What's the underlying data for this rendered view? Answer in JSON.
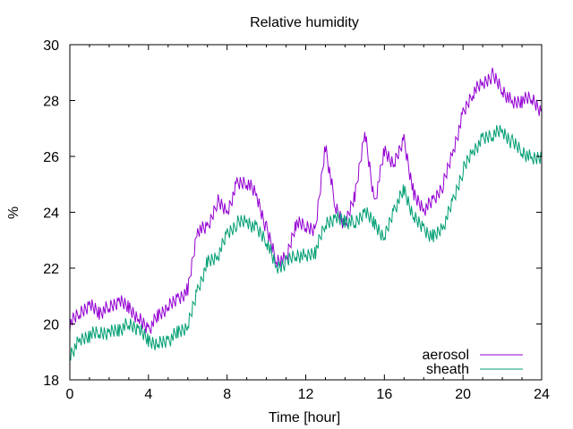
{
  "chart_data": {
    "type": "line",
    "title": "Relative humidity",
    "xlabel": "Time [hour]",
    "ylabel": "%",
    "xlim": [
      0,
      24
    ],
    "ylim": [
      18,
      30
    ],
    "xticks": [
      0,
      4,
      8,
      12,
      16,
      20,
      24
    ],
    "xtick_labels": [
      "0",
      "4",
      "8",
      "12",
      "16",
      "20",
      "24"
    ],
    "yticks": [
      18,
      20,
      22,
      24,
      26,
      28,
      30
    ],
    "ytick_labels": [
      "18",
      "20",
      "22",
      "24",
      "26",
      "28",
      "30"
    ],
    "grid": false,
    "legend": "bottom-right",
    "series": [
      {
        "name": "aerosol",
        "color": "#9400d3",
        "x": [
          0,
          0.5,
          1,
          1.5,
          2,
          2.5,
          3,
          3.5,
          4,
          4.5,
          5,
          5.5,
          6,
          6.5,
          7,
          7.5,
          8,
          8.5,
          9,
          9.5,
          10,
          10.5,
          11,
          11.5,
          12,
          12.5,
          13,
          13.5,
          14,
          14.5,
          15,
          15.5,
          16,
          16.5,
          17,
          17.5,
          18,
          18.5,
          19,
          19.5,
          20,
          20.5,
          21,
          21.5,
          22,
          22.5,
          23,
          23.5,
          24
        ],
        "y": [
          20.0,
          20.4,
          20.7,
          20.4,
          20.6,
          20.8,
          20.6,
          20.2,
          19.8,
          20.3,
          20.6,
          20.9,
          21.2,
          23.4,
          23.4,
          24.4,
          24.0,
          25.0,
          25.1,
          24.6,
          23.4,
          22.3,
          22.3,
          23.6,
          23.5,
          23.4,
          26.4,
          24.2,
          23.5,
          24.6,
          26.9,
          24.3,
          26.2,
          25.7,
          26.6,
          24.6,
          24.1,
          24.4,
          25.0,
          26.2,
          27.5,
          28.3,
          28.6,
          28.9,
          28.4,
          27.9,
          28.0,
          28.1,
          27.6
        ]
      },
      {
        "name": "sheath",
        "color": "#009e73",
        "x": [
          0,
          0.5,
          1,
          1.5,
          2,
          2.5,
          3,
          3.5,
          4,
          4.5,
          5,
          5.5,
          6,
          6.5,
          7,
          7.5,
          8,
          8.5,
          9,
          9.5,
          10,
          10.5,
          11,
          11.5,
          12,
          12.5,
          13,
          13.5,
          14,
          14.5,
          15,
          15.5,
          16,
          16.5,
          17,
          17.5,
          18,
          18.5,
          19,
          19.5,
          20,
          20.5,
          21,
          21.5,
          22,
          22.5,
          23,
          23.5,
          24
        ],
        "y": [
          18.9,
          19.4,
          19.6,
          19.7,
          19.7,
          19.8,
          20.0,
          19.8,
          19.4,
          19.3,
          19.4,
          19.7,
          19.9,
          21.2,
          22.2,
          22.4,
          23.2,
          23.6,
          23.7,
          23.4,
          23.0,
          22.0,
          22.2,
          22.5,
          22.4,
          22.6,
          23.6,
          23.8,
          23.7,
          23.6,
          24.0,
          23.6,
          23.1,
          24.1,
          24.8,
          23.8,
          23.4,
          23.1,
          23.5,
          24.4,
          25.5,
          26.2,
          26.6,
          26.8,
          26.9,
          26.5,
          26.2,
          25.9,
          26.0
        ]
      }
    ]
  }
}
